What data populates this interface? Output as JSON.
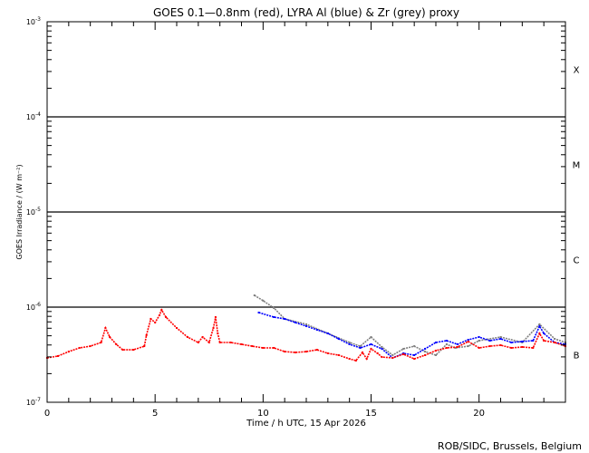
{
  "chart_data": {
    "type": "line",
    "title": "GOES 0.1—0.8nm (red), LYRA Al (blue) & Zr (grey) proxy",
    "xlabel": "Time / h UTC, 15 Apr 2026",
    "ylabel": "GOES Irradiance / (W m⁻²)",
    "xlim": [
      0,
      24
    ],
    "ylim": [
      1e-07,
      0.001
    ],
    "yscale": "log",
    "x_ticks": [
      0,
      5,
      10,
      15,
      20
    ],
    "x_tick_labels": [
      "0",
      "5",
      "10",
      "15",
      "20"
    ],
    "y_ticks": [
      {
        "value": 0.001,
        "base": "10",
        "exp": "-3"
      },
      {
        "value": 0.0001,
        "base": "10",
        "exp": "-4"
      },
      {
        "value": 1e-05,
        "base": "10",
        "exp": "-5"
      },
      {
        "value": 1e-06,
        "base": "10",
        "exp": "-6"
      },
      {
        "value": 1e-07,
        "base": "10",
        "exp": "-7"
      }
    ],
    "flare_classes": [
      {
        "label": "X",
        "value": 0.000316
      },
      {
        "label": "M",
        "value": 3.16e-05
      },
      {
        "label": "C",
        "value": 3.16e-06
      },
      {
        "label": "B",
        "value": 3.16e-07
      }
    ],
    "threshold_lines": [
      0.0001,
      1e-05,
      1e-06
    ],
    "series": [
      {
        "name": "GOES 0.1-0.8nm",
        "color": "#ff0000",
        "x": [
          0,
          0.5,
          1,
          1.5,
          2,
          2.5,
          2.7,
          2.9,
          3.2,
          3.5,
          4,
          4.5,
          4.6,
          4.8,
          5.0,
          5.2,
          5.3,
          5.5,
          6,
          6.5,
          7,
          7.2,
          7.5,
          7.7,
          7.8,
          7.9,
          8,
          8.5,
          9,
          9.5,
          10,
          10.5,
          11,
          11.5,
          12,
          12.5,
          13,
          13.5,
          14,
          14.3,
          14.6,
          14.8,
          15,
          15.3,
          15.5,
          16,
          16.5,
          17,
          17.5,
          18,
          18.5,
          19,
          19.5,
          20,
          20.5,
          21,
          21.5,
          22,
          22.5,
          22.8,
          23,
          23.5,
          24
        ],
        "y": [
          2.93e-07,
          3.06e-07,
          3.41e-07,
          3.73e-07,
          3.89e-07,
          4.25e-07,
          6.04e-07,
          4.85e-07,
          4.07e-07,
          3.56e-07,
          3.56e-07,
          3.89e-07,
          5.07e-07,
          7.52e-07,
          6.89e-07,
          8.21e-07,
          9.36e-07,
          7.86e-07,
          6.04e-07,
          4.85e-07,
          4.25e-07,
          4.85e-07,
          4.25e-07,
          6.04e-07,
          7.86e-07,
          5.3e-07,
          4.25e-07,
          4.25e-07,
          4.07e-07,
          3.89e-07,
          3.73e-07,
          3.73e-07,
          3.41e-07,
          3.34e-07,
          3.41e-07,
          3.56e-07,
          3.27e-07,
          3.13e-07,
          2.86e-07,
          2.74e-07,
          3.34e-07,
          2.86e-07,
          3.65e-07,
          3.27e-07,
          2.99e-07,
          2.93e-07,
          3.2e-07,
          2.86e-07,
          3.13e-07,
          3.49e-07,
          3.73e-07,
          3.81e-07,
          4.35e-07,
          3.73e-07,
          3.89e-07,
          3.98e-07,
          3.73e-07,
          3.81e-07,
          3.73e-07,
          5.3e-07,
          4.44e-07,
          4.25e-07,
          3.89e-07
        ]
      },
      {
        "name": "LYRA Al proxy",
        "color": "#0000ff",
        "x": [
          9.8,
          10.5,
          11,
          11.5,
          12,
          12.5,
          13,
          13.5,
          14,
          14.5,
          15,
          15.5,
          16,
          16.5,
          17,
          17.5,
          18,
          18.5,
          19,
          19.5,
          20,
          20.5,
          21,
          21.5,
          22,
          22.5,
          22.8,
          23,
          23.5,
          24
        ],
        "y": [
          8.77e-07,
          7.86e-07,
          7.52e-07,
          6.89e-07,
          6.31e-07,
          5.78e-07,
          5.3e-07,
          4.64e-07,
          4.07e-07,
          3.73e-07,
          4.07e-07,
          3.65e-07,
          2.93e-07,
          3.27e-07,
          3.13e-07,
          3.65e-07,
          4.25e-07,
          4.44e-07,
          4.07e-07,
          4.54e-07,
          4.85e-07,
          4.44e-07,
          4.64e-07,
          4.25e-07,
          4.35e-07,
          4.44e-07,
          6.31e-07,
          5.3e-07,
          4.25e-07,
          4.07e-07
        ]
      },
      {
        "name": "LYRA Zr proxy",
        "color": "#808080",
        "x": [
          9.6,
          10,
          10.5,
          11,
          12,
          13,
          14,
          14.5,
          15,
          15.5,
          16,
          16.5,
          17,
          17.5,
          18,
          18.5,
          18.9,
          19.5,
          20,
          21,
          22,
          22.8,
          23.5,
          24
        ],
        "y": [
          1.33e-06,
          1.17e-06,
          9.78e-07,
          7.52e-07,
          6.6e-07,
          5.3e-07,
          4.25e-07,
          3.89e-07,
          4.85e-07,
          3.81e-07,
          3.13e-07,
          3.65e-07,
          3.89e-07,
          3.41e-07,
          3.13e-07,
          4.07e-07,
          3.73e-07,
          3.89e-07,
          4.44e-07,
          4.85e-07,
          4.25e-07,
          6.6e-07,
          4.64e-07,
          4.25e-07
        ]
      }
    ]
  },
  "footer": {
    "credit": "ROB/SIDC, Brussels, Belgium"
  }
}
